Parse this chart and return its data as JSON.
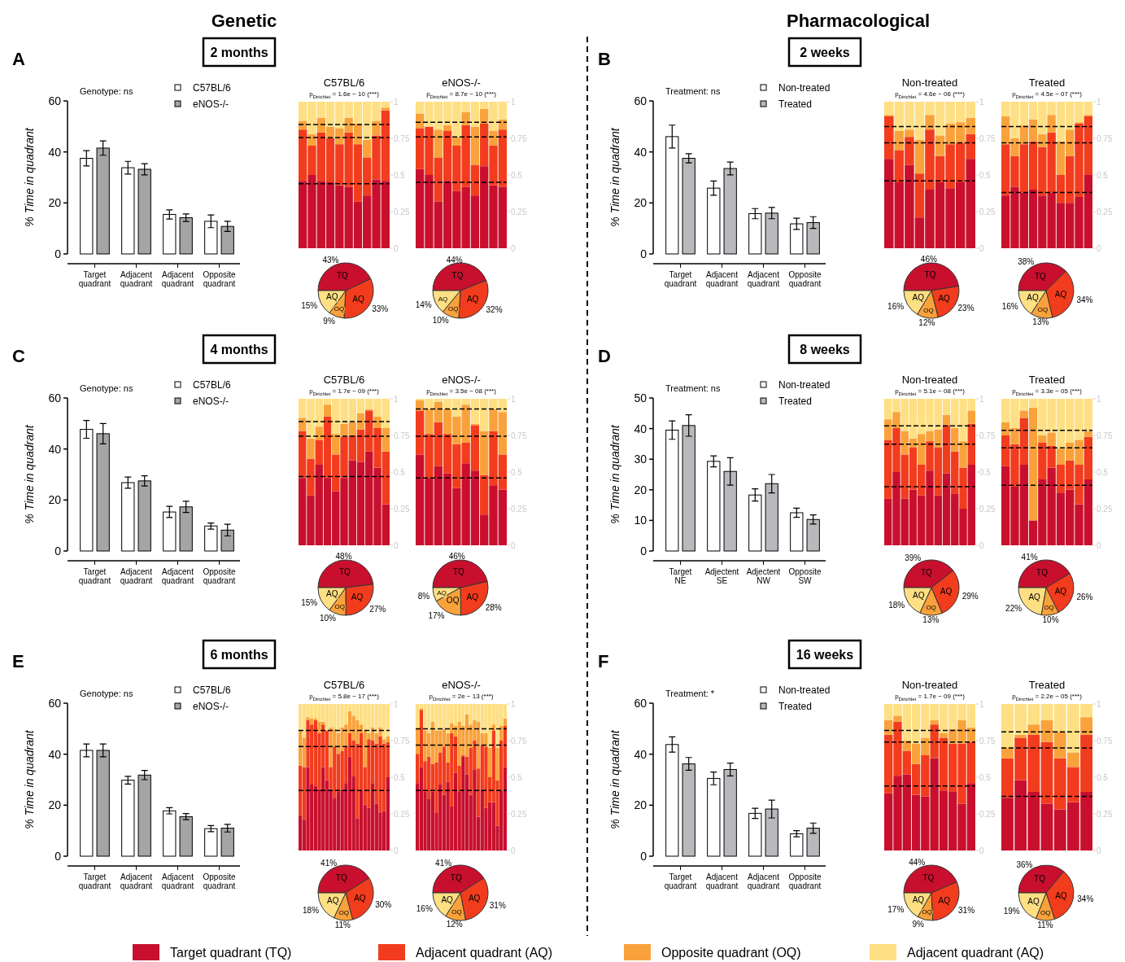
{
  "chart_data": [
    {
      "type": "bar",
      "title": "2 months",
      "annotations": [
        "A",
        "Genotype: ns",
        "Genetic"
      ],
      "ylabel": "% Time in quadrant",
      "categories": [
        "Target quadrant",
        "Adjacent quadrant",
        "Adjacent quadrant",
        "Opposite quadrant"
      ],
      "series": [
        {
          "name": "C57BL/6",
          "color": "#ffffff",
          "values": [
            37.5,
            33.8,
            15.5,
            12.8
          ],
          "errors": [
            3,
            2.5,
            1.8,
            2.5
          ]
        },
        {
          "name": "eNOS-/-",
          "color": "#a5a5a8",
          "values": [
            41.5,
            33.2,
            14.2,
            10.8
          ],
          "errors": [
            2.8,
            2.2,
            1.5,
            2
          ]
        }
      ],
      "ylim": [
        0,
        60
      ],
      "yticks": [
        0,
        20,
        40,
        60
      ],
      "legend": "top right"
    },
    {
      "type": "bar",
      "stacked": true,
      "title": "C57BL/6",
      "subtitle": "p$_{Dirichlet}$ = 1.6e − 10 (***)",
      "categories": [
        null,
        null,
        null,
        null,
        null,
        null,
        null,
        null,
        null,
        null
      ],
      "series": [
        {
          "name": "Target quadrant (TQ)",
          "color": "#c8102e",
          "values": [
            0.46,
            0.5,
            0.46,
            0.45,
            0.43,
            0.42,
            0.32,
            0.36,
            0.47,
            0.46
          ]
        },
        {
          "name": "Adjacent quadrant (AQ)",
          "color": "#f23c1e",
          "values": [
            0.35,
            0.2,
            0.33,
            0.3,
            0.28,
            0.37,
            0.39,
            0.26,
            0.3,
            0.48
          ]
        },
        {
          "name": "Opposite quadrant (OQ)",
          "color": "#f9a23c",
          "values": [
            0.06,
            0.08,
            0.1,
            0.08,
            0.11,
            0.1,
            0.14,
            0.12,
            0.1,
            0.02
          ]
        },
        {
          "name": "Adjacent quadrant (AQ)",
          "color": "#fedf84",
          "values": [
            0.13,
            0.22,
            0.11,
            0.17,
            0.18,
            0.11,
            0.15,
            0.26,
            0.13,
            0.04
          ]
        }
      ],
      "ylim": [
        0,
        1
      ],
      "yticks": [
        0,
        0.25,
        0.5,
        0.75,
        1
      ],
      "tick_labels": "y",
      "legend": "bottom",
      "ref_lines": [
        {
          "axis": "y",
          "value": 0.44,
          "line_style": "dashed"
        },
        {
          "axis": "y",
          "value": 0.755,
          "line_style": "dashed"
        },
        {
          "axis": "y",
          "value": 0.845,
          "line_style": "dashed"
        }
      ]
    },
    {
      "type": "bar",
      "stacked": true,
      "title": "eNOS-/-",
      "subtitle": "p$_{Dirichlet}$ = 8.7e − 10 (***)",
      "categories": [
        null,
        null,
        null,
        null,
        null,
        null,
        null,
        null,
        null,
        null
      ],
      "series": [
        {
          "color": "#c8102e",
          "values": [
            0.54,
            0.5,
            0.32,
            0.46,
            0.39,
            0.42,
            0.36,
            0.56,
            0.43,
            0.42
          ]
        },
        {
          "color": "#f23c1e",
          "values": [
            0.28,
            0.33,
            0.3,
            0.34,
            0.31,
            0.42,
            0.21,
            0.29,
            0.27,
            0.39
          ]
        },
        {
          "color": "#f9a23c",
          "values": [
            0.1,
            0,
            0.19,
            0.04,
            0.06,
            0.09,
            0.26,
            0.1,
            0.1,
            0.07
          ]
        },
        {
          "color": "#fedf84",
          "values": [
            0.08,
            0.17,
            0.19,
            0.16,
            0.24,
            0.07,
            0.17,
            0.05,
            0.2,
            0.12
          ]
        }
      ],
      "ylim": [
        0,
        1
      ],
      "yticks": [
        0,
        0.25,
        0.5,
        0.75,
        1
      ],
      "tick_labels": "y",
      "ref_lines": [
        {
          "axis": "y",
          "value": 0.45,
          "line_style": "dashed"
        },
        {
          "axis": "y",
          "value": 0.76,
          "line_style": "dashed"
        },
        {
          "axis": "y",
          "value": 0.86,
          "line_style": "dashed"
        }
      ]
    },
    {
      "type": "pie",
      "categories": [
        "TQ",
        "AQ",
        "OQ",
        "AQ"
      ],
      "values": [
        43,
        33,
        9,
        15
      ],
      "value_labels": [
        "43%",
        "33%",
        "9%",
        "15%"
      ],
      "colors": [
        "#c8102e",
        "#f23c1e",
        "#f9a23c",
        "#fedf84"
      ]
    },
    {
      "type": "pie",
      "categories": [
        "TQ",
        "AQ",
        "OQ",
        "AQ"
      ],
      "values": [
        44,
        32,
        10,
        14
      ],
      "value_labels": [
        "44%",
        "32%",
        "10%",
        "14%"
      ],
      "colors": [
        "#c8102e",
        "#f23c1e",
        "#f9a23c",
        "#fedf84"
      ]
    },
    {
      "type": "bar",
      "title": "2 weeks",
      "annotations": [
        "B",
        "Treatment: ns",
        "Pharmacological"
      ],
      "ylabel": "% Time in quadrant",
      "categories": [
        "Target quadrant",
        "Adjacent quadrant",
        "Adjacent quadrant",
        "Opposite quadrant"
      ],
      "series": [
        {
          "name": "Non-treated",
          "color": "#ffffff",
          "values": [
            46,
            25.8,
            15.8,
            11.8
          ],
          "errors": [
            4.5,
            2.8,
            2,
            2.2
          ]
        },
        {
          "name": "Treated",
          "color": "#b9b9bd",
          "values": [
            37.5,
            33.5,
            16,
            12.3
          ],
          "errors": [
            1.8,
            2.5,
            2.2,
            2.3
          ]
        }
      ],
      "ylim": [
        0,
        60
      ],
      "yticks": [
        0,
        20,
        40,
        60
      ],
      "legend": "top right"
    },
    {
      "type": "bar",
      "stacked": true,
      "title": "Non-treated",
      "subtitle": "p$_{Dirichlet}$ = 4.6e − 06 (***)",
      "categories": [
        null,
        null,
        null,
        null,
        null,
        null,
        null,
        null,
        null
      ],
      "series": [
        {
          "color": "#c8102e",
          "values": [
            0.61,
            0.45,
            0.57,
            0.21,
            0.4,
            0.45,
            0.41,
            0.45,
            0.61
          ]
        },
        {
          "color": "#f23c1e",
          "values": [
            0.29,
            0.22,
            0.19,
            0.3,
            0.41,
            0.18,
            0.3,
            0.27,
            0.17
          ]
        },
        {
          "color": "#f9a23c",
          "values": [
            0.01,
            0.13,
            0.05,
            0.23,
            0.1,
            0.14,
            0.14,
            0.14,
            0.11
          ]
        },
        {
          "color": "#fedf84",
          "values": [
            0.09,
            0.2,
            0.19,
            0.26,
            0.09,
            0.23,
            0.15,
            0.14,
            0.11
          ]
        }
      ],
      "ylim": [
        0,
        1
      ],
      "yticks": [
        0,
        0.25,
        0.5,
        0.75,
        1
      ],
      "tick_labels": "y",
      "ref_lines": [
        {
          "axis": "y",
          "value": 0.46,
          "line_style": "dashed"
        },
        {
          "axis": "y",
          "value": 0.72,
          "line_style": "dashed"
        },
        {
          "axis": "y",
          "value": 0.83,
          "line_style": "dashed"
        }
      ]
    },
    {
      "type": "bar",
      "stacked": true,
      "title": "Treated",
      "subtitle": "p$_{Dirichlet}$ = 4.5e − 07 (***)",
      "categories": [
        null,
        null,
        null,
        null,
        null,
        null,
        null,
        null,
        null,
        null
      ],
      "series": [
        {
          "color": "#c8102e",
          "values": [
            0.36,
            0.42,
            0.38,
            0.4,
            0.36,
            0.38,
            0.31,
            0.31,
            0.35,
            0.5
          ]
        },
        {
          "color": "#f23c1e",
          "values": [
            0.35,
            0.21,
            0.33,
            0.33,
            0.33,
            0.41,
            0.19,
            0.32,
            0.5,
            0.4
          ]
        },
        {
          "color": "#f9a23c",
          "values": [
            0.19,
            0.12,
            0.13,
            0.15,
            0.09,
            0.12,
            0.23,
            0.18,
            0.01,
            0.01
          ]
        },
        {
          "color": "#fedf84",
          "values": [
            0.1,
            0.25,
            0.16,
            0.12,
            0.22,
            0.09,
            0.27,
            0.19,
            0.14,
            0.09
          ]
        }
      ],
      "ylim": [
        0,
        1
      ],
      "yticks": [
        0,
        0.25,
        0.5,
        0.75,
        1
      ],
      "tick_labels": "y",
      "ref_lines": [
        {
          "axis": "y",
          "value": 0.38,
          "line_style": "dashed"
        },
        {
          "axis": "y",
          "value": 0.72,
          "line_style": "dashed"
        },
        {
          "axis": "y",
          "value": 0.83,
          "line_style": "dashed"
        }
      ]
    },
    {
      "type": "pie",
      "categories": [
        "TQ",
        "AQ",
        "OQ",
        "AQ"
      ],
      "values": [
        46,
        23,
        12,
        16
      ],
      "value_labels": [
        "46%",
        "23%",
        "12%",
        "16%"
      ],
      "colors": [
        "#c8102e",
        "#f23c1e",
        "#f9a23c",
        "#fedf84"
      ]
    },
    {
      "type": "pie",
      "categories": [
        "TQ",
        "AQ",
        "OQ",
        "AQ"
      ],
      "values": [
        38,
        34,
        13,
        16
      ],
      "value_labels": [
        "38%",
        "34%",
        "13%",
        "16%"
      ],
      "colors": [
        "#c8102e",
        "#f23c1e",
        "#f9a23c",
        "#fedf84"
      ]
    },
    {
      "type": "bar",
      "title": "4 months",
      "annotations": [
        "C",
        "Genotype: ns"
      ],
      "ylabel": "% Time in quadrant",
      "categories": [
        "Target quadrant",
        "Adjacent quadrant",
        "Adjacent quadrant",
        "Opposite quadrant"
      ],
      "series": [
        {
          "name": "C57BL/6",
          "color": "#ffffff",
          "values": [
            47.7,
            26.8,
            15.3,
            9.8
          ],
          "errors": [
            3.5,
            2.2,
            2.2,
            1.2
          ]
        },
        {
          "name": "eNOS-/-",
          "color": "#a5a5a8",
          "values": [
            46,
            27.5,
            17.3,
            8.2
          ],
          "errors": [
            4,
            2,
            2.2,
            2.3
          ]
        }
      ],
      "ylim": [
        0,
        60
      ],
      "yticks": [
        0,
        20,
        40,
        60
      ],
      "legend": "top right"
    },
    {
      "type": "bar",
      "stacked": true,
      "title": "C57BL/6",
      "subtitle": "p$_{Dirichlet}$ = 1.7e − 09 (***)",
      "categories": [
        null,
        null,
        null,
        null,
        null,
        null,
        null,
        null,
        null,
        null,
        null
      ],
      "series": [
        {
          "color": "#c8102e",
          "values": [
            0.46,
            0.34,
            0.55,
            0.46,
            0.37,
            0.46,
            0.58,
            0.57,
            0.64,
            0.53,
            0.28
          ]
        },
        {
          "color": "#f23c1e",
          "values": [
            0.32,
            0.25,
            0.17,
            0.42,
            0.25,
            0.28,
            0.17,
            0.22,
            0.28,
            0.27,
            0.36
          ]
        },
        {
          "color": "#f9a23c",
          "values": [
            0.09,
            0.14,
            0.09,
            0.08,
            0.14,
            0.09,
            0.09,
            0.11,
            0.01,
            0.08,
            0.16
          ]
        },
        {
          "color": "#fedf84",
          "values": [
            0.13,
            0.27,
            0.19,
            0.04,
            0.24,
            0.17,
            0.16,
            0.1,
            0.07,
            0.12,
            0.2
          ]
        }
      ],
      "ylim": [
        0,
        1
      ],
      "yticks": [
        0,
        0.25,
        0.5,
        0.75,
        1
      ],
      "tick_labels": "y",
      "ref_lines": [
        {
          "axis": "y",
          "value": 0.47,
          "line_style": "dashed"
        },
        {
          "axis": "y",
          "value": 0.745,
          "line_style": "dashed"
        },
        {
          "axis": "y",
          "value": 0.845,
          "line_style": "dashed"
        }
      ]
    },
    {
      "type": "bar",
      "stacked": true,
      "title": "eNOS-/-",
      "subtitle": "p$_{Dirichlet}$ = 3.5e − 08 (***)",
      "categories": [
        null,
        null,
        null,
        null,
        null,
        null,
        null,
        null,
        null,
        null
      ],
      "series": [
        {
          "color": "#c8102e",
          "values": [
            0.62,
            0.46,
            0.54,
            0.49,
            0.39,
            0.56,
            0.51,
            0.21,
            0.41,
            0.38
          ]
        },
        {
          "color": "#f23c1e",
          "values": [
            0.3,
            0.3,
            0.3,
            0.27,
            0.3,
            0.14,
            0.31,
            0.27,
            0.37,
            0.24
          ]
        },
        {
          "color": "#f9a23c",
          "values": [
            0.07,
            0.17,
            0.14,
            0.17,
            0.19,
            0.26,
            0.01,
            0.3,
            0.15,
            0.29
          ]
        },
        {
          "color": "#fedf84",
          "values": [
            0.01,
            0.07,
            0.02,
            0.07,
            0.12,
            0.04,
            0.17,
            0.22,
            0.07,
            0.09
          ]
        }
      ],
      "ylim": [
        0,
        1
      ],
      "yticks": [
        0,
        0.25,
        0.5,
        0.75,
        1
      ],
      "tick_labels": "y",
      "ref_lines": [
        {
          "axis": "y",
          "value": 0.46,
          "line_style": "dashed"
        },
        {
          "axis": "y",
          "value": 0.745,
          "line_style": "dashed"
        },
        {
          "axis": "y",
          "value": 0.93,
          "line_style": "dashed"
        }
      ]
    },
    {
      "type": "pie",
      "categories": [
        "TQ",
        "AQ",
        "OQ",
        "AQ"
      ],
      "values": [
        48,
        27,
        10,
        15
      ],
      "value_labels": [
        "48%",
        "27%",
        "10%",
        "15%"
      ],
      "colors": [
        "#c8102e",
        "#f23c1e",
        "#f9a23c",
        "#fedf84"
      ]
    },
    {
      "type": "pie",
      "categories": [
        "TQ",
        "AQ",
        "OQ",
        "AQ"
      ],
      "values": [
        46,
        28,
        17,
        8
      ],
      "value_labels": [
        "46%",
        "28%",
        "17%",
        "8%"
      ],
      "colors": [
        "#c8102e",
        "#f23c1e",
        "#f9a23c",
        "#fedf84"
      ]
    },
    {
      "type": "bar",
      "title": "8 weeks",
      "annotations": [
        "D",
        "Treatment: ns"
      ],
      "ylabel": "% Time in quadrant",
      "categories": [
        "Target NE",
        "Adjectent SE",
        "Adjectent NW",
        "Opposite SW"
      ],
      "series": [
        {
          "name": "Non-treated",
          "color": "#ffffff",
          "values": [
            39.5,
            29.3,
            18.3,
            12.5
          ],
          "errors": [
            3,
            1.8,
            2,
            1.5
          ]
        },
        {
          "name": "Treated",
          "color": "#b9b9bd",
          "values": [
            41,
            26,
            22,
            10.3
          ],
          "errors": [
            3.5,
            4.5,
            3,
            1.5
          ]
        }
      ],
      "ylim": [
        0,
        50
      ],
      "yticks": [
        0,
        10,
        20,
        30,
        40,
        50
      ],
      "legend": "top right"
    },
    {
      "type": "bar",
      "stacked": true,
      "title": "Non-treated",
      "subtitle": "p$_{Dirichlet}$ = 5.1e − 08 (***)",
      "categories": [
        null,
        null,
        null,
        null,
        null,
        null,
        null,
        null,
        null,
        null,
        null
      ],
      "series": [
        {
          "color": "#c8102e",
          "values": [
            0.32,
            0.5,
            0.32,
            0.38,
            0.34,
            0.51,
            0.34,
            0.49,
            0.35,
            0.25,
            0.55
          ]
        },
        {
          "color": "#f23c1e",
          "values": [
            0.4,
            0.3,
            0.3,
            0.29,
            0.21,
            0.2,
            0.33,
            0.33,
            0.29,
            0.28,
            0.28
          ]
        },
        {
          "color": "#f9a23c",
          "values": [
            0.14,
            0.11,
            0.16,
            0.06,
            0.21,
            0.07,
            0.12,
            0.07,
            0.16,
            0.18,
            0.09
          ]
        },
        {
          "color": "#fedf84",
          "values": [
            0.14,
            0.09,
            0.22,
            0.27,
            0.24,
            0.22,
            0.21,
            0.11,
            0.2,
            0.29,
            0.08
          ]
        }
      ],
      "ylim": [
        0,
        1
      ],
      "yticks": [
        0,
        0.25,
        0.5,
        0.75,
        1
      ],
      "tick_labels": "y",
      "ref_lines": [
        {
          "axis": "y",
          "value": 0.4,
          "line_style": "dashed"
        },
        {
          "axis": "y",
          "value": 0.69,
          "line_style": "dashed"
        },
        {
          "axis": "y",
          "value": 0.815,
          "line_style": "dashed"
        }
      ]
    },
    {
      "type": "bar",
      "stacked": true,
      "title": "Treated",
      "subtitle": "p$_{Dirichlet}$ = 3.3e − 05 (***)",
      "categories": [
        null,
        null,
        null,
        null,
        null,
        null,
        null,
        null,
        null,
        null
      ],
      "series": [
        {
          "color": "#c8102e",
          "values": [
            0.54,
            0.4,
            0.55,
            0.17,
            0.45,
            0.53,
            0.36,
            0.38,
            0.28,
            0.45
          ]
        },
        {
          "color": "#f23c1e",
          "values": [
            0.21,
            0.29,
            0.32,
            0,
            0.25,
            0.15,
            0.19,
            0.2,
            0.27,
            0.29
          ]
        },
        {
          "color": "#f9a23c",
          "values": [
            0.09,
            0.11,
            0.05,
            0.77,
            0.05,
            0.09,
            0.11,
            0.12,
            0.17,
            0.04
          ]
        },
        {
          "color": "#fedf84",
          "values": [
            0.16,
            0.2,
            0.08,
            0.06,
            0.25,
            0.23,
            0.34,
            0.3,
            0.28,
            0.22
          ]
        }
      ],
      "ylim": [
        0,
        1
      ],
      "yticks": [
        0,
        0.25,
        0.5,
        0.75,
        1
      ],
      "tick_labels": "y",
      "ref_lines": [
        {
          "axis": "y",
          "value": 0.41,
          "line_style": "dashed"
        },
        {
          "axis": "y",
          "value": 0.665,
          "line_style": "dashed"
        },
        {
          "axis": "y",
          "value": 0.785,
          "line_style": "dashed"
        }
      ]
    },
    {
      "type": "pie",
      "categories": [
        "TQ",
        "AQ",
        "OQ",
        "AQ"
      ],
      "values": [
        39,
        29,
        13,
        18
      ],
      "value_labels": [
        "39%",
        "29%",
        "13%",
        "18%"
      ],
      "colors": [
        "#c8102e",
        "#f23c1e",
        "#f9a23c",
        "#fedf84"
      ]
    },
    {
      "type": "pie",
      "categories": [
        "TQ",
        "AQ",
        "OQ",
        "AQ"
      ],
      "values": [
        41,
        26,
        10,
        22
      ],
      "value_labels": [
        "41%",
        "26%",
        "10%",
        "22%"
      ],
      "colors": [
        "#c8102e",
        "#f23c1e",
        "#f9a23c",
        "#fedf84"
      ]
    },
    {
      "type": "bar",
      "title": "6 months",
      "annotations": [
        "E",
        "Genotype: ns"
      ],
      "ylabel": "% Time in quadrant",
      "categories": [
        "Target quadrant",
        "Adjacent quadrant",
        "Adjacent quadrant",
        "Opposite quadrant"
      ],
      "series": [
        {
          "name": "C57BL/6",
          "color": "#ffffff",
          "values": [
            41.5,
            29.8,
            17.8,
            10.8
          ],
          "errors": [
            2.5,
            1.5,
            1.2,
            1.2
          ]
        },
        {
          "name": "eNOS-/-",
          "color": "#a5a5a8",
          "values": [
            41.5,
            31.8,
            15.5,
            11
          ],
          "errors": [
            2.5,
            1.8,
            1.2,
            1.5
          ]
        }
      ],
      "ylim": [
        0,
        60
      ],
      "yticks": [
        0,
        20,
        40,
        60
      ],
      "legend": "top right"
    },
    {
      "type": "bar",
      "stacked": true,
      "title": "C57BL/6",
      "subtitle": "p$_{Dirichlet}$ = 5.8e − 17 (***)",
      "categories": [
        null,
        null,
        null,
        null,
        null,
        null,
        null,
        null,
        null,
        null,
        null,
        null,
        null,
        null,
        null,
        null,
        null,
        null,
        null,
        null,
        null,
        null,
        null,
        null
      ],
      "series": [
        {
          "color": "#c8102e",
          "values": [
            0.24,
            0.21,
            0.57,
            0.45,
            0.44,
            0.42,
            0.57,
            0.48,
            0.42,
            0.36,
            0.4,
            0.42,
            0.46,
            0.64,
            0.51,
            0.22,
            0.41,
            0.31,
            0.29,
            0.46,
            0.32,
            0.26,
            0.27,
            0.5
          ]
        },
        {
          "color": "#f23c1e",
          "values": [
            0.34,
            0.36,
            0.32,
            0.41,
            0.45,
            0.38,
            0.29,
            0.34,
            0.15,
            0.35,
            0.26,
            0.26,
            0.25,
            0.16,
            0.24,
            0.51,
            0.39,
            0.26,
            0.47,
            0.29,
            0.41,
            0.52,
            0.46,
            0.24
          ]
        },
        {
          "color": "#f9a23c",
          "values": [
            0.24,
            0.2,
            0.02,
            0.04,
            0.01,
            0.08,
            0.02,
            0,
            0.27,
            0.12,
            0.14,
            0.16,
            0.15,
            0.15,
            0.17,
            0.16,
            0.06,
            0.25,
            0.04,
            0.09,
            0.07,
            0.06,
            0.03,
            0.04
          ]
        },
        {
          "color": "#fedf84",
          "values": [
            0.18,
            0.23,
            0.09,
            0.1,
            0.1,
            0.12,
            0.12,
            0.18,
            0.16,
            0.17,
            0.2,
            0.16,
            0.14,
            0.05,
            0.08,
            0.11,
            0.14,
            0.18,
            0.2,
            0.16,
            0.2,
            0.16,
            0.24,
            0.22
          ]
        }
      ],
      "ylim": [
        0,
        1
      ],
      "yticks": [
        0,
        0.25,
        0.5,
        0.75,
        1
      ],
      "tick_labels": "y",
      "ref_lines": [
        {
          "axis": "y",
          "value": 0.41,
          "line_style": "dashed"
        },
        {
          "axis": "y",
          "value": 0.71,
          "line_style": "dashed"
        },
        {
          "axis": "y",
          "value": 0.82,
          "line_style": "dashed"
        }
      ]
    },
    {
      "type": "bar",
      "stacked": true,
      "title": "eNOS-/-",
      "subtitle": "p$_{Dirichlet}$ = 2e − 13 (***)",
      "categories": [
        null,
        null,
        null,
        null,
        null,
        null,
        null,
        null,
        null,
        null,
        null,
        null,
        null,
        null,
        null,
        null,
        null,
        null,
        null,
        null,
        null,
        null,
        null,
        null
      ],
      "series": [
        {
          "color": "#c8102e",
          "values": [
            0.46,
            0.57,
            0.4,
            0.35,
            0.4,
            0.26,
            0.45,
            0.38,
            0.47,
            0.3,
            0.53,
            0.4,
            0.64,
            0.52,
            0.38,
            0.55,
            0.23,
            0.42,
            0.29,
            0.33,
            0.33,
            0.17,
            0.41,
            0.57
          ]
        },
        {
          "color": "#f23c1e",
          "values": [
            0.2,
            0.39,
            0.21,
            0.29,
            0.19,
            0.34,
            0.22,
            0.33,
            0.13,
            0.5,
            0.25,
            0.18,
            0.01,
            0.12,
            0.32,
            0.2,
            0.33,
            0.3,
            0.42,
            0.17,
            0.49,
            0.31,
            0.34,
            0.28
          ]
        },
        {
          "color": "#f9a23c",
          "values": [
            0.17,
            0.01,
            0.21,
            0.16,
            0.29,
            0.22,
            0.15,
            0.12,
            0.2,
            0.07,
            0.07,
            0.3,
            0.2,
            0.29,
            0.16,
            0.14,
            0.32,
            0.08,
            0.09,
            0.2,
            0.04,
            0.22,
            0.1,
            0.05
          ]
        },
        {
          "color": "#fedf84",
          "values": [
            0.17,
            0.03,
            0.18,
            0.2,
            0.12,
            0.18,
            0.18,
            0.17,
            0.2,
            0.13,
            0.15,
            0.12,
            0.15,
            0.07,
            0.14,
            0.11,
            0.12,
            0.2,
            0.2,
            0.3,
            0.14,
            0.3,
            0.15,
            0.1
          ]
        }
      ],
      "ylim": [
        0,
        1
      ],
      "yticks": [
        0,
        0.25,
        0.5,
        0.75,
        1
      ],
      "tick_labels": "y",
      "ref_lines": [
        {
          "axis": "y",
          "value": 0.41,
          "line_style": "dashed"
        },
        {
          "axis": "y",
          "value": 0.72,
          "line_style": "dashed"
        },
        {
          "axis": "y",
          "value": 0.83,
          "line_style": "dashed"
        }
      ]
    },
    {
      "type": "pie",
      "categories": [
        "TQ",
        "AQ",
        "OQ",
        "AQ"
      ],
      "values": [
        41,
        30,
        11,
        18
      ],
      "value_labels": [
        "41%",
        "30%",
        "11%",
        "18%"
      ],
      "colors": [
        "#c8102e",
        "#f23c1e",
        "#f9a23c",
        "#fedf84"
      ]
    },
    {
      "type": "pie",
      "categories": [
        "TQ",
        "AQ",
        "OQ",
        "AQ"
      ],
      "values": [
        41,
        31,
        12,
        16
      ],
      "value_labels": [
        "41%",
        "31%",
        "12%",
        "16%"
      ],
      "colors": [
        "#c8102e",
        "#f23c1e",
        "#f9a23c",
        "#fedf84"
      ]
    },
    {
      "type": "bar",
      "title": "16 weeks",
      "annotations": [
        "F",
        "Treatment: *"
      ],
      "ylabel": "% Time in quadrant",
      "categories": [
        "Target quadrant",
        "Adjacent quadrant",
        "Adjacent quadrant",
        "Opposite quadrant"
      ],
      "series": [
        {
          "name": "Non-treated",
          "color": "#ffffff",
          "values": [
            43.8,
            30.5,
            16.8,
            8.8
          ],
          "errors": [
            3,
            2.5,
            2,
            1.2
          ]
        },
        {
          "name": "Treated",
          "color": "#b9b9bd",
          "values": [
            36.2,
            34,
            18.5,
            11
          ],
          "errors": [
            2.5,
            2.5,
            3.5,
            2
          ]
        }
      ],
      "ylim": [
        0,
        60
      ],
      "yticks": [
        0,
        20,
        40,
        60
      ],
      "legend": "top right"
    },
    {
      "type": "bar",
      "stacked": true,
      "title": "Non-treated",
      "subtitle": "p$_{Dirichlet}$ = 1.7e − 09 (***)",
      "categories": [
        null,
        null,
        null,
        null,
        null,
        null,
        null,
        null,
        null,
        null
      ],
      "series": [
        {
          "color": "#c8102e",
          "values": [
            0.39,
            0.51,
            0.52,
            0.38,
            0.37,
            0.63,
            0.41,
            0.4,
            0.32,
            0.46
          ]
        },
        {
          "color": "#f23c1e",
          "values": [
            0.4,
            0.37,
            0.16,
            0.21,
            0.28,
            0.23,
            0.36,
            0.33,
            0.41,
            0.28
          ]
        },
        {
          "color": "#f9a23c",
          "values": [
            0.1,
            0.04,
            0.07,
            0.14,
            0.12,
            0.03,
            0.03,
            0.1,
            0.16,
            0.1
          ]
        },
        {
          "color": "#fedf84",
          "values": [
            0.11,
            0.08,
            0.25,
            0.27,
            0.23,
            0.11,
            0.2,
            0.17,
            0.11,
            0.16
          ]
        }
      ],
      "ylim": [
        0,
        1
      ],
      "yticks": [
        0,
        0.25,
        0.5,
        0.75,
        1
      ],
      "tick_labels": "y",
      "ref_lines": [
        {
          "axis": "y",
          "value": 0.44,
          "line_style": "dashed"
        },
        {
          "axis": "y",
          "value": 0.74,
          "line_style": "dashed"
        },
        {
          "axis": "y",
          "value": 0.82,
          "line_style": "dashed"
        }
      ]
    },
    {
      "type": "bar",
      "stacked": true,
      "title": "Treated",
      "subtitle": "p$_{Dirichlet}$ = 2.2e − 05 (***)",
      "categories": [
        null,
        null,
        null,
        null,
        null,
        null,
        null
      ],
      "series": [
        {
          "color": "#c8102e",
          "values": [
            0.36,
            0.48,
            0.4,
            0.32,
            0.28,
            0.33,
            0.4
          ]
        },
        {
          "color": "#f23c1e",
          "values": [
            0.27,
            0.29,
            0.39,
            0.42,
            0.35,
            0.24,
            0.39
          ]
        },
        {
          "color": "#f9a23c",
          "values": [
            0.07,
            0.02,
            0.07,
            0.15,
            0.18,
            0.1,
            0.12
          ]
        },
        {
          "color": "#fedf84",
          "values": [
            0.3,
            0.21,
            0.14,
            0.11,
            0.19,
            0.33,
            0.09
          ]
        }
      ],
      "ylim": [
        0,
        1
      ],
      "yticks": [
        0,
        0.25,
        0.5,
        0.75,
        1
      ],
      "tick_labels": "y",
      "ref_lines": [
        {
          "axis": "y",
          "value": 0.37,
          "line_style": "dashed"
        },
        {
          "axis": "y",
          "value": 0.7,
          "line_style": "dashed"
        },
        {
          "axis": "y",
          "value": 0.81,
          "line_style": "dashed"
        }
      ]
    },
    {
      "type": "pie",
      "categories": [
        "TQ",
        "AQ",
        "OQ",
        "AQ"
      ],
      "values": [
        44,
        31,
        9,
        17
      ],
      "value_labels": [
        "44%",
        "31%",
        "9%",
        "17%"
      ],
      "colors": [
        "#c8102e",
        "#f23c1e",
        "#f9a23c",
        "#fedf84"
      ]
    },
    {
      "type": "pie",
      "categories": [
        "TQ",
        "AQ",
        "OQ",
        "AQ"
      ],
      "values": [
        36,
        34,
        11,
        19
      ],
      "value_labels": [
        "36%",
        "34%",
        "11%",
        "19%"
      ],
      "colors": [
        "#c8102e",
        "#f23c1e",
        "#f9a23c",
        "#fedf84"
      ]
    }
  ]
}
